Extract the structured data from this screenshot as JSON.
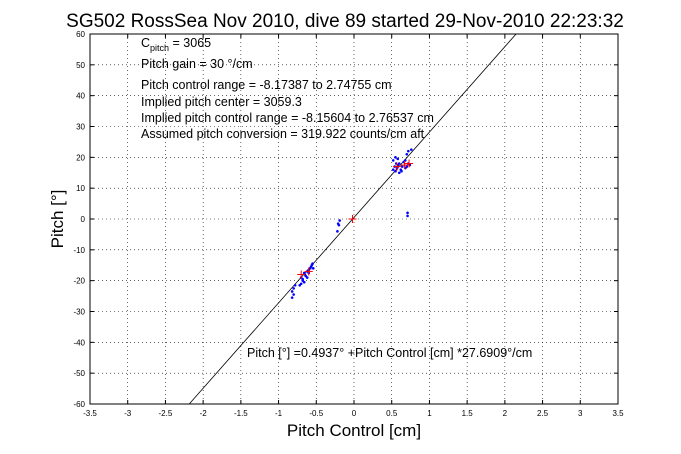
{
  "chart_data": {
    "type": "scatter",
    "title": "SG502 RossSea Nov 2010, dive 89 started 29-Nov-2010 22:23:32",
    "xlabel": "Pitch Control [cm]",
    "ylabel": "Pitch [°]",
    "xlim": [
      -3.5,
      3.5
    ],
    "ylim": [
      -60,
      60
    ],
    "xticks": [
      -3.5,
      -3,
      -2.5,
      -2,
      -1.5,
      -1,
      -0.5,
      0,
      0.5,
      1,
      1.5,
      2,
      2.5,
      3,
      3.5
    ],
    "yticks": [
      -60,
      -50,
      -40,
      -30,
      -20,
      -10,
      0,
      10,
      20,
      30,
      40,
      50,
      60
    ],
    "xtick_labels": [
      "-3.5",
      "-3",
      "-2.5",
      "-2",
      "-1.5",
      "-1",
      "-0.5",
      "0",
      "0.5",
      "1",
      "1.5",
      "2",
      "2.5",
      "3",
      "3.5"
    ],
    "ytick_labels": [
      "-60",
      "-50",
      "-40",
      "-30",
      "-20",
      "-10",
      "0",
      "10",
      "20",
      "30",
      "40",
      "50",
      "60"
    ],
    "grid": true,
    "grid_style": "dotted",
    "colors": {
      "data": "#0000ff",
      "fit_points": "#ff0000",
      "fit_line": "#000000"
    },
    "annotations": {
      "cpitch_main": "C",
      "cpitch_sub": "pitch",
      "cpitch_value": " = 3065",
      "lines": [
        "Pitch gain = 30 °/cm",
        "Pitch control range = -8.17387 to 2.74755 cm",
        "Implied pitch center = 3059.3",
        "Implied pitch control range = -8.15604 to 2.76537 cm",
        "Assumed pitch conversion = 319.922 counts/cm aft"
      ],
      "fit_equation": "Pitch [°] =0.4937° +Pitch Control [cm] *27.6909°/cm"
    },
    "fit": {
      "intercept": 0.4937,
      "slope": 27.6909
    },
    "series": [
      {
        "marker": "dot",
        "color": "#0000ff",
        "points": [
          [
            -0.82,
            -23.5
          ],
          [
            -0.8,
            -22.5
          ],
          [
            -0.78,
            -21.5
          ],
          [
            -0.8,
            -24.5
          ],
          [
            -0.82,
            -25.5
          ],
          [
            -0.7,
            -19.0
          ],
          [
            -0.68,
            -19.5
          ],
          [
            -0.66,
            -20.5
          ],
          [
            -0.64,
            -18.5
          ],
          [
            -0.62,
            -17.0
          ],
          [
            -0.6,
            -16.5
          ],
          [
            -0.58,
            -16.0
          ],
          [
            -0.56,
            -15.0
          ],
          [
            -0.55,
            -14.5
          ],
          [
            -0.6,
            -17.5
          ],
          [
            -0.65,
            -18.0
          ],
          [
            -0.68,
            -20.0
          ],
          [
            -0.7,
            -21.0
          ],
          [
            -0.72,
            -21.5
          ],
          [
            -0.57,
            -15.5
          ],
          [
            -0.54,
            -16.0
          ],
          [
            -0.62,
            -19.0
          ],
          [
            -0.66,
            -17.5
          ],
          [
            -0.22,
            -4.0
          ],
          [
            -0.2,
            -2.0
          ],
          [
            -0.19,
            -0.5
          ],
          [
            -0.21,
            -1.5
          ],
          [
            0.52,
            16.0
          ],
          [
            0.54,
            17.0
          ],
          [
            0.55,
            15.5
          ],
          [
            0.56,
            18.0
          ],
          [
            0.57,
            16.5
          ],
          [
            0.58,
            17.5
          ],
          [
            0.6,
            15.0
          ],
          [
            0.62,
            16.0
          ],
          [
            0.64,
            17.0
          ],
          [
            0.66,
            18.5
          ],
          [
            0.68,
            16.5
          ],
          [
            0.7,
            17.0
          ],
          [
            0.72,
            18.0
          ],
          [
            0.74,
            17.5
          ],
          [
            0.52,
            19.0
          ],
          [
            0.55,
            20.0
          ],
          [
            0.58,
            19.5
          ],
          [
            0.7,
            21.0
          ],
          [
            0.72,
            22.0
          ],
          [
            0.76,
            22.5
          ],
          [
            0.6,
            18.0
          ],
          [
            0.63,
            15.5
          ],
          [
            0.68,
            19.0
          ],
          [
            0.71,
            2.0
          ],
          [
            0.71,
            1.0
          ]
        ]
      },
      {
        "marker": "plus",
        "color": "#ff0000",
        "points": [
          [
            -0.7,
            -18.0
          ],
          [
            -0.6,
            -17.0
          ],
          [
            -0.02,
            0.0
          ],
          [
            0.57,
            17.0
          ],
          [
            0.67,
            17.5
          ],
          [
            0.73,
            18.0
          ]
        ]
      }
    ]
  }
}
